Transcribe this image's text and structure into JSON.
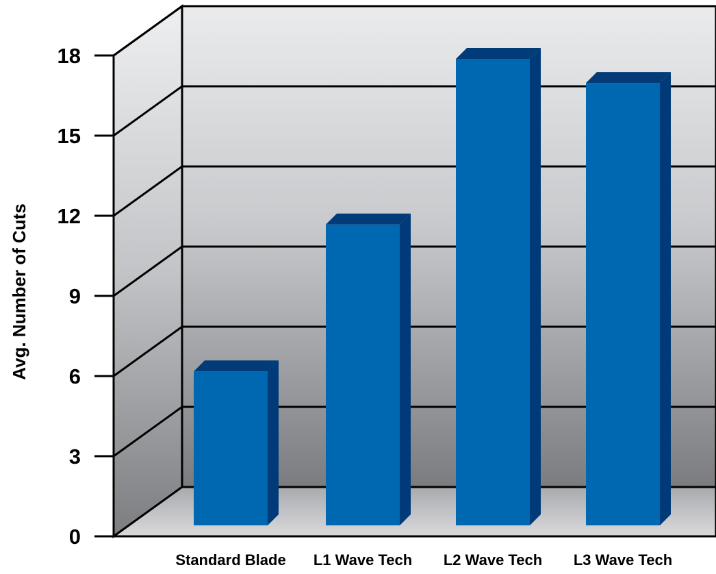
{
  "chart_data": {
    "type": "bar",
    "categories": [
      "Standard Blade",
      "L1 Wave Tech",
      "L2 Wave Tech",
      "L3 Wave Tech"
    ],
    "values": [
      5.3,
      10.8,
      17.0,
      16.1
    ],
    "title": "",
    "xlabel": "",
    "ylabel": "Avg. Number of Cuts",
    "ylim": [
      0,
      18
    ],
    "yticks": [
      0,
      3,
      6,
      9,
      12,
      15,
      18
    ],
    "grid": true,
    "legend": "none",
    "bar_colors": {
      "front": "#0067b1",
      "side": "#003a78",
      "top": "#013c79"
    }
  }
}
